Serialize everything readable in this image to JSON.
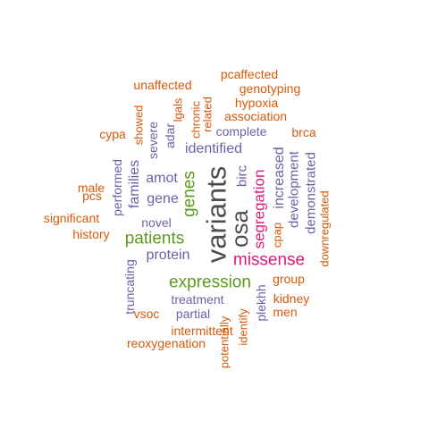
{
  "colors": {
    "dark": "#4d4d4d",
    "green": "#5c9a1f",
    "magenta": "#d81b7c",
    "purple": "#6a62a8",
    "orange": "#d45a0a"
  },
  "words": [
    {
      "text": "variants",
      "color": "dark"
    },
    {
      "text": "osa",
      "color": "dark"
    },
    {
      "text": "expression",
      "color": "green"
    },
    {
      "text": "patients",
      "color": "green"
    },
    {
      "text": "genes",
      "color": "green"
    },
    {
      "text": "missense",
      "color": "magenta"
    },
    {
      "text": "segregation",
      "color": "magenta"
    },
    {
      "text": "identified",
      "color": "purple"
    },
    {
      "text": "amot",
      "color": "purple"
    },
    {
      "text": "gene",
      "color": "purple"
    },
    {
      "text": "protein",
      "color": "purple"
    },
    {
      "text": "novel",
      "color": "purple"
    },
    {
      "text": "families",
      "color": "purple"
    },
    {
      "text": "severe",
      "color": "purple"
    },
    {
      "text": "adar",
      "color": "purple"
    },
    {
      "text": "complete",
      "color": "purple"
    },
    {
      "text": "birc",
      "color": "purple"
    },
    {
      "text": "increased",
      "color": "purple"
    },
    {
      "text": "development",
      "color": "purple"
    },
    {
      "text": "demonstrated",
      "color": "purple"
    },
    {
      "text": "performed",
      "color": "purple"
    },
    {
      "text": "truncating",
      "color": "purple"
    },
    {
      "text": "treatment",
      "color": "purple"
    },
    {
      "text": "partial",
      "color": "purple"
    },
    {
      "text": "plekhh",
      "color": "purple"
    },
    {
      "text": "pcaffected",
      "color": "orange"
    },
    {
      "text": "unaffected",
      "color": "orange"
    },
    {
      "text": "genotyping",
      "color": "orange"
    },
    {
      "text": "hypoxia",
      "color": "orange"
    },
    {
      "text": "lgals",
      "color": "orange"
    },
    {
      "text": "related",
      "color": "orange"
    },
    {
      "text": "association",
      "color": "orange"
    },
    {
      "text": "chronic",
      "color": "orange"
    },
    {
      "text": "showed",
      "color": "orange"
    },
    {
      "text": "cypa",
      "color": "orange"
    },
    {
      "text": "brca",
      "color": "orange"
    },
    {
      "text": "male",
      "color": "orange"
    },
    {
      "text": "pcs",
      "color": "orange"
    },
    {
      "text": "significant",
      "color": "orange"
    },
    {
      "text": "history",
      "color": "orange"
    },
    {
      "text": "cpap",
      "color": "orange"
    },
    {
      "text": "downregulated",
      "color": "orange"
    },
    {
      "text": "group",
      "color": "orange"
    },
    {
      "text": "kidney",
      "color": "orange"
    },
    {
      "text": "men",
      "color": "orange"
    },
    {
      "text": "vsoc",
      "color": "orange"
    },
    {
      "text": "intermittent",
      "color": "orange"
    },
    {
      "text": "reoxygenation",
      "color": "orange"
    },
    {
      "text": "potentially",
      "color": "orange"
    },
    {
      "text": "identify",
      "color": "orange"
    }
  ]
}
